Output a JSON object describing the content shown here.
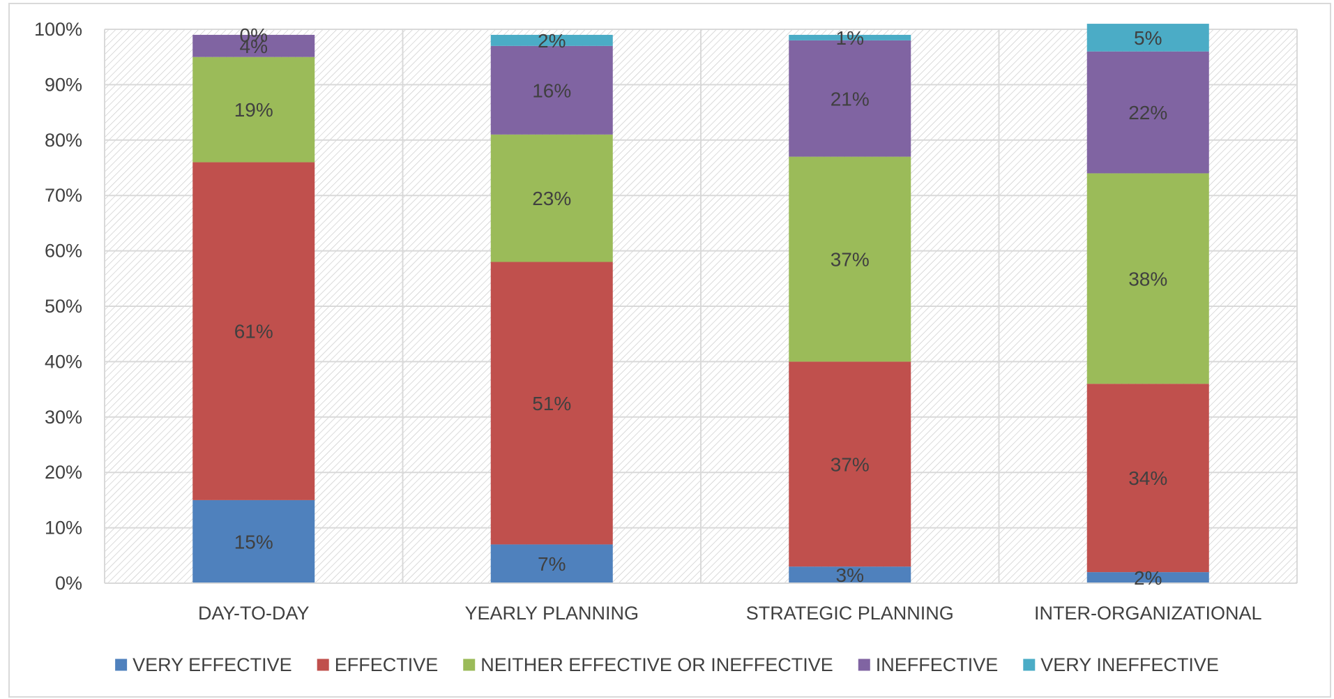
{
  "chart_data": {
    "type": "bar",
    "stacked": true,
    "categories": [
      "DAY-TO-DAY",
      "YEARLY PLANNING",
      "STRATEGIC PLANNING",
      "INTER-ORGANIZATIONAL"
    ],
    "y_ticks": [
      "0%",
      "10%",
      "20%",
      "30%",
      "40%",
      "50%",
      "60%",
      "70%",
      "80%",
      "90%",
      "100%"
    ],
    "ylim": [
      0,
      100
    ],
    "grid": true,
    "legend_position": "bottom",
    "series": [
      {
        "name": "VERY EFFECTIVE",
        "color": "#4f81bd",
        "values": [
          15,
          7,
          3,
          2
        ],
        "labels": [
          "15%",
          "7%",
          "3%",
          "2%"
        ]
      },
      {
        "name": "EFFECTIVE",
        "color": "#c0504d",
        "values": [
          61,
          51,
          37,
          34
        ],
        "labels": [
          "61%",
          "51%",
          "37%",
          "34%"
        ]
      },
      {
        "name": "NEITHER EFFECTIVE OR INEFFECTIVE",
        "color": "#9bbb59",
        "values": [
          19,
          23,
          37,
          38
        ],
        "labels": [
          "19%",
          "23%",
          "37%",
          "38%"
        ]
      },
      {
        "name": "INEFFECTIVE",
        "color": "#8064a2",
        "values": [
          4,
          16,
          21,
          22
        ],
        "labels": [
          "4%",
          "16%",
          "21%",
          "22%"
        ]
      },
      {
        "name": "VERY INEFFECTIVE",
        "color": "#4bacc6",
        "values": [
          0,
          2,
          1,
          5
        ],
        "labels": [
          "0%",
          "2%",
          "1%",
          "5%"
        ]
      }
    ]
  }
}
